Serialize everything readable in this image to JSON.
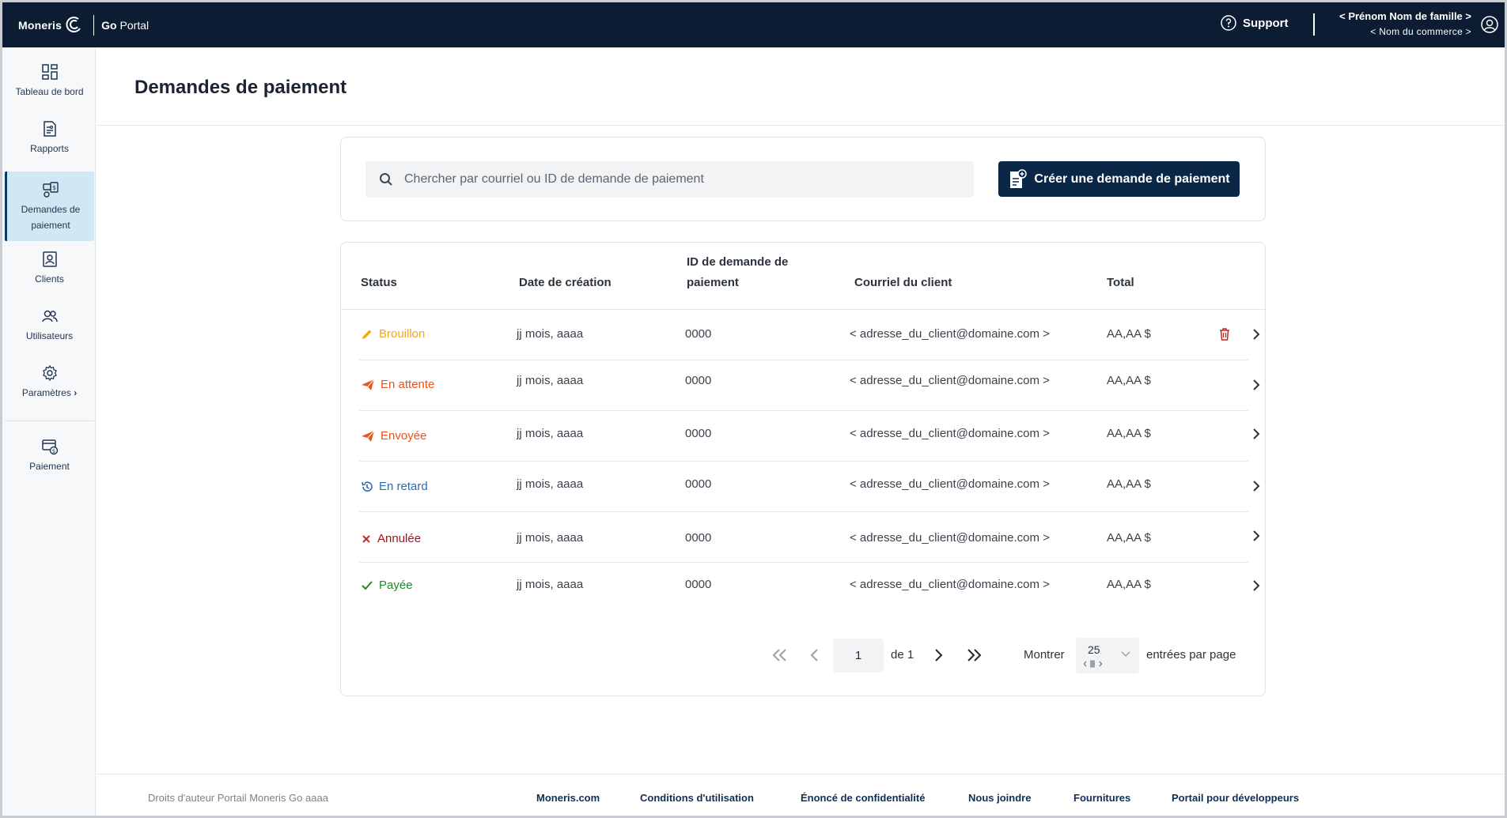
{
  "app": {
    "brand_name": "Moneris",
    "brand_go": "Go",
    "brand_portal": "Portal"
  },
  "topbar": {
    "support_label": "Support",
    "user_name": "< Prénom Nom de famille >",
    "shop_name": "< Nom du commerce >"
  },
  "sidebar": {
    "items": [
      {
        "label": "Tableau de bord",
        "icon": "dashboard-icon"
      },
      {
        "label": "Rapports",
        "icon": "reports-icon"
      },
      {
        "label": "Demandes de paiement",
        "icon": "payment-requests-icon",
        "active": true
      },
      {
        "label": "Clients",
        "icon": "clients-icon"
      },
      {
        "label": "Utilisateurs",
        "icon": "users-icon"
      },
      {
        "label": "Paramètres",
        "icon": "settings-icon"
      },
      {
        "label": "Paiement",
        "icon": "payment-icon"
      }
    ]
  },
  "page": {
    "title": "Demandes de paiement"
  },
  "search": {
    "placeholder": "Chercher par courriel ou ID de demande de paiement",
    "value": ""
  },
  "create_button": {
    "label": "Créer une demande de paiement"
  },
  "table": {
    "headers": {
      "status": "Status",
      "date": "Date de création",
      "id_line1": "ID de demande de",
      "id_line2": "paiement",
      "email": "Courriel du client",
      "total": "Total"
    },
    "rows": [
      {
        "status": "Brouillon",
        "status_icon": "pencil-icon",
        "color": "#f0a81c",
        "date": "jj mois, aaaa",
        "id": "0000",
        "email": "< adresse_du_client@domaine.com >",
        "total": "AA,AA $",
        "deletable": true
      },
      {
        "status": "En attente",
        "status_icon": "send-icon",
        "color": "#e8541b",
        "date": "jj mois, aaaa",
        "id": "0000",
        "email": "< adresse_du_client@domaine.com >",
        "total": "AA,AA $",
        "deletable": false
      },
      {
        "status": "Envoyée",
        "status_icon": "send-icon",
        "color": "#e8541b",
        "date": "jj mois, aaaa",
        "id": "0000",
        "email": "< adresse_du_client@domaine.com >",
        "total": "AA,AA $",
        "deletable": false
      },
      {
        "status": "En retard",
        "status_icon": "history-icon",
        "color": "#2b6cb0",
        "date": "jj mois, aaaa",
        "id": "0000",
        "email": "< adresse_du_client@domaine.com >",
        "total": "AA,AA $",
        "deletable": false
      },
      {
        "status": "Annulée",
        "status_icon": "cross-icon",
        "color": "#a5121c",
        "date": "jj mois, aaaa",
        "id": "0000",
        "email": "< adresse_du_client@domaine.com >",
        "total": "AA,AA $",
        "deletable": false
      },
      {
        "status": "Payée",
        "status_icon": "check-icon",
        "color": "#1e8a2e",
        "date": "jj mois, aaaa",
        "id": "0000",
        "email": "< adresse_du_client@domaine.com >",
        "total": "AA,AA $",
        "deletable": false
      }
    ]
  },
  "pagination": {
    "current_page": "1",
    "of_label": "de 1",
    "show_label": "Montrer",
    "per_page": "25",
    "entries_label": "entrées par page"
  },
  "footer": {
    "copyright": "Droits d'auteur Portail Moneris Go  aaaa",
    "links": [
      "Moneris.com",
      "Conditions d'utilisation",
      "Énoncé de confidentialité",
      "Nous joindre",
      "Fournitures",
      "Portail pour développeurs"
    ]
  },
  "colors": {
    "topbar": "#0b1c33",
    "primary_button": "#0b2748",
    "active_nav": "#cfe8f3",
    "delete": "#c62828"
  }
}
